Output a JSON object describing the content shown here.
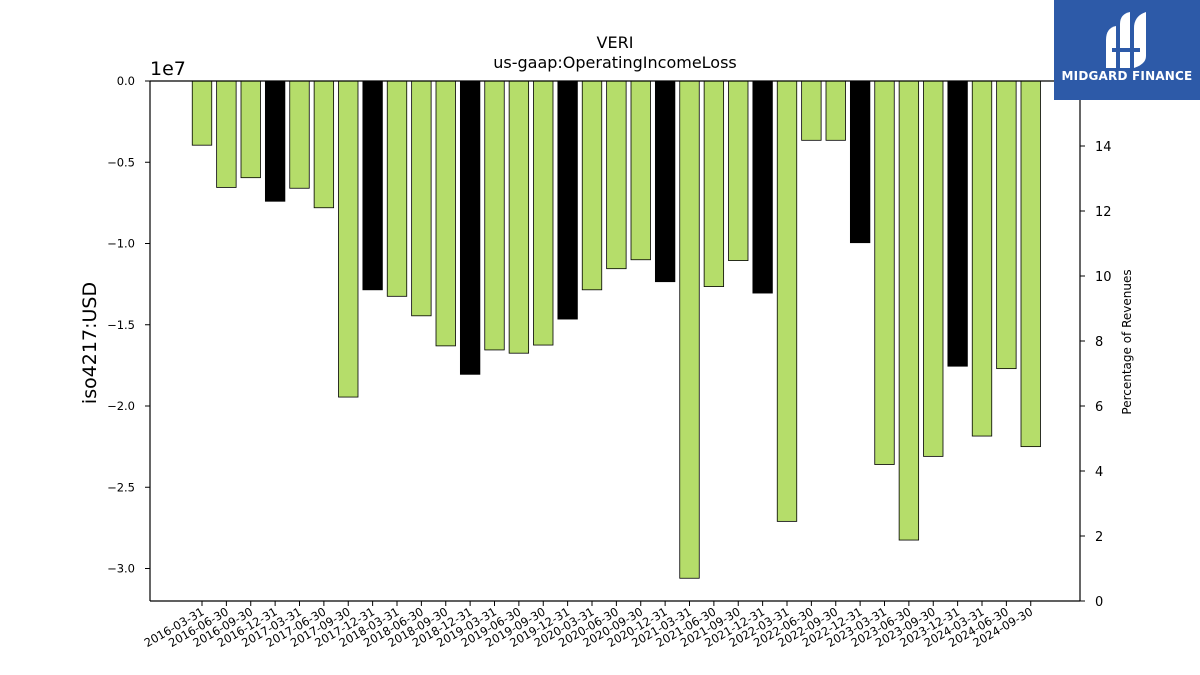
{
  "chart_data": {
    "type": "bar",
    "title": "VERI",
    "subtitle": "us-gaap:OperatingIncomeLoss",
    "ylabel": "iso4217:USD",
    "y2label": "Percentage of Revenues",
    "offset_text": "1e7",
    "ylim": [
      -32000000,
      0
    ],
    "y2lim": [
      0,
      16
    ],
    "yticks": [
      {
        "value": 0,
        "label": "0.0"
      },
      {
        "value": -5000000,
        "label": "−0.5"
      },
      {
        "value": -10000000,
        "label": "−1.0"
      },
      {
        "value": -15000000,
        "label": "−1.5"
      },
      {
        "value": -20000000,
        "label": "−2.0"
      },
      {
        "value": -25000000,
        "label": "−2.5"
      },
      {
        "value": -30000000,
        "label": "−3.0"
      }
    ],
    "y2ticks": [
      {
        "value": 0,
        "label": "0"
      },
      {
        "value": 2,
        "label": "2"
      },
      {
        "value": 4,
        "label": "4"
      },
      {
        "value": 6,
        "label": "6"
      },
      {
        "value": 8,
        "label": "8"
      },
      {
        "value": 10,
        "label": "10"
      },
      {
        "value": 12,
        "label": "12"
      },
      {
        "value": 14,
        "label": "14"
      }
    ],
    "categories": [
      "2016-03-31",
      "2016-06-30",
      "2016-09-30",
      "2016-12-31",
      "2017-03-31",
      "2017-06-30",
      "2017-09-30",
      "2017-12-31",
      "2018-03-31",
      "2018-06-30",
      "2018-09-30",
      "2018-12-31",
      "2019-03-31",
      "2019-06-30",
      "2019-09-30",
      "2019-12-31",
      "2020-03-31",
      "2020-06-30",
      "2020-09-30",
      "2020-12-31",
      "2021-03-31",
      "2021-06-30",
      "2021-09-30",
      "2021-12-31",
      "2022-03-31",
      "2022-06-30",
      "2022-09-30",
      "2022-12-31",
      "2023-03-31",
      "2023-06-30",
      "2023-09-30",
      "2023-12-31",
      "2024-03-31",
      "2024-06-30",
      "2024-09-30"
    ],
    "values": [
      -3950000,
      -6550000,
      -5950000,
      -7400000,
      -6600000,
      -7800000,
      -19450000,
      -12850000,
      -13250000,
      -14450000,
      -16300000,
      -18050000,
      -16550000,
      -16750000,
      -16250000,
      -14650000,
      -12850000,
      -11550000,
      -11000000,
      -12350000,
      -30600000,
      -12650000,
      -11050000,
      -13050000,
      -27100000,
      -3650000,
      -3650000,
      -9950000,
      -23600000,
      -28250000,
      -23100000,
      -17550000,
      -21850000,
      -17700000,
      -22500000
    ],
    "is_year_end": [
      false,
      false,
      false,
      true,
      false,
      false,
      false,
      true,
      false,
      false,
      false,
      true,
      false,
      false,
      false,
      true,
      false,
      false,
      false,
      true,
      false,
      false,
      false,
      true,
      false,
      false,
      false,
      true,
      false,
      false,
      false,
      true,
      false,
      false,
      false
    ],
    "colors": {
      "quarter": "#b5dd6a",
      "year_end": "#000000",
      "edge": "#000000"
    },
    "grid": false,
    "legend": "none"
  },
  "logo": {
    "brand": "MIDGARD FINANCE",
    "icon": "midgard-logo-icon"
  }
}
